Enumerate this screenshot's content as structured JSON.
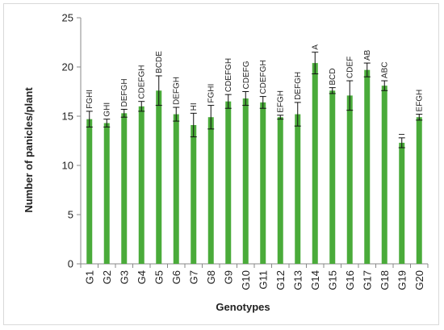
{
  "chart_data": {
    "type": "bar",
    "title": "",
    "xlabel": "Genotypes",
    "ylabel": "Number of panicles/plant",
    "ylim": [
      0,
      25
    ],
    "yticks": [
      0,
      5,
      10,
      15,
      20,
      25
    ],
    "grid": false,
    "legend": "none",
    "bar_color": "#4aab3a",
    "categories": [
      "G1",
      "G2",
      "G3",
      "G4",
      "G5",
      "G6",
      "G7",
      "G8",
      "G9",
      "G10",
      "G11",
      "G12",
      "G13",
      "G14",
      "G15",
      "G16",
      "G17",
      "G18",
      "G19",
      "G20"
    ],
    "values": [
      14.7,
      14.3,
      15.3,
      16.0,
      17.6,
      15.2,
      14.1,
      14.9,
      16.5,
      16.8,
      16.4,
      14.9,
      15.2,
      20.4,
      17.6,
      17.1,
      19.7,
      18.1,
      12.3,
      14.9
    ],
    "errors": [
      0.8,
      0.4,
      0.4,
      0.5,
      1.5,
      0.7,
      1.2,
      1.2,
      0.7,
      0.7,
      0.6,
      0.2,
      1.2,
      1.1,
      0.3,
      1.5,
      0.7,
      0.5,
      0.5,
      0.3
    ],
    "significance_labels": [
      "FGHI",
      "GHI",
      "DEFGH",
      "CDEFGH",
      "BCDE",
      "DEFGH",
      "HI",
      "FGHI",
      "CDEFGH",
      "CDEFG",
      "CDEFGH",
      "EFGH",
      "DEFGH",
      "A",
      "BCD",
      "CDEF",
      "AB",
      "ABC",
      "I",
      "EFGH"
    ]
  }
}
